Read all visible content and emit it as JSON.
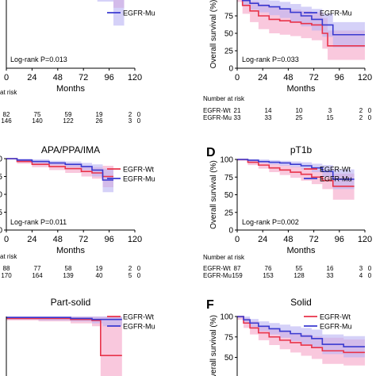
{
  "chart_data": [
    {
      "type": "line",
      "subtype": "kaplan-meier",
      "panel": "",
      "title": "",
      "ylabel": "",
      "xlabel": "Months",
      "xlim": [
        0,
        120
      ],
      "ylim": [
        0,
        100
      ],
      "xticks": [
        0,
        24,
        48,
        72,
        96,
        120
      ],
      "yticks": [],
      "legend": [
        "EGFR-Mu"
      ],
      "legend_placement": "top-right",
      "pvalue": "Log-rank P=0.013",
      "series": [
        {
          "name": "EGFR-Wt",
          "color": "#e8334a",
          "band": "#f5a3c7",
          "x": [
            0,
            15,
            25,
            40,
            55,
            70,
            85,
            100,
            110
          ],
          "y": [
            96,
            95,
            94,
            93,
            92,
            90,
            88,
            82,
            82
          ],
          "lower": [
            94,
            92,
            90,
            88,
            87,
            84,
            80,
            68,
            68
          ],
          "upper": [
            98,
            97,
            96,
            96,
            96,
            94,
            92,
            94,
            94
          ]
        },
        {
          "name": "EGFR-Mu",
          "color": "#3a3ad0",
          "band": "#b9b3f3",
          "x": [
            0,
            15,
            25,
            40,
            55,
            70,
            85,
            100,
            110
          ],
          "y": [
            97,
            97,
            96,
            96,
            95,
            92,
            88,
            88,
            88
          ],
          "lower": [
            95,
            94,
            93,
            92,
            90,
            85,
            75,
            48,
            48
          ],
          "upper": [
            99,
            99,
            99,
            98,
            98,
            96,
            95,
            96,
            96
          ]
        }
      ],
      "risk_table": {
        "label": "at risk",
        "rows": [
          {
            "group": "",
            "values": [
              "82",
              "75",
              "59",
              "19",
              "2",
              "0"
            ]
          },
          {
            "group": "",
            "values": [
              "146",
              "140",
              "122",
              "26",
              "3",
              "0"
            ]
          }
        ]
      }
    },
    {
      "type": "line",
      "subtype": "kaplan-meier",
      "panel": "",
      "title": "",
      "ylabel": "Overall survival (%)",
      "xlabel": "Months",
      "xlim": [
        0,
        120
      ],
      "ylim": [
        0,
        100
      ],
      "xticks": [
        0,
        24,
        48,
        72,
        96,
        120
      ],
      "yticks": [
        0,
        25,
        50,
        75,
        100
      ],
      "legend": [
        "EGFR-Mu"
      ],
      "legend_placement": "top-right",
      "pvalue": "Log-rank P=0.033",
      "series": [
        {
          "name": "EGFR-Wt",
          "color": "#e8334a",
          "band": "#f5a3c7",
          "x": [
            0,
            5,
            12,
            20,
            30,
            40,
            50,
            60,
            70,
            80,
            85,
            100,
            120
          ],
          "y": [
            100,
            90,
            82,
            75,
            70,
            68,
            66,
            64,
            62,
            50,
            32,
            32,
            32
          ],
          "lower": [
            95,
            78,
            66,
            56,
            50,
            48,
            46,
            43,
            40,
            28,
            12,
            12,
            12
          ],
          "upper": [
            100,
            100,
            96,
            92,
            88,
            86,
            84,
            82,
            80,
            72,
            54,
            54,
            54
          ]
        },
        {
          "name": "EGFR-Mu",
          "color": "#3a3ad0",
          "band": "#b9b3f3",
          "x": [
            0,
            5,
            12,
            20,
            30,
            40,
            50,
            60,
            70,
            80,
            90,
            100,
            120
          ],
          "y": [
            100,
            97,
            93,
            90,
            88,
            85,
            80,
            75,
            70,
            62,
            48,
            48,
            48
          ],
          "lower": [
            98,
            90,
            84,
            80,
            76,
            72,
            66,
            60,
            54,
            45,
            30,
            30,
            30
          ],
          "upper": [
            100,
            100,
            100,
            98,
            97,
            95,
            92,
            88,
            85,
            78,
            66,
            66,
            66
          ]
        }
      ],
      "risk_table": {
        "label": "Number at risk",
        "rows": [
          {
            "group": "EGFR-Wt",
            "values": [
              "21",
              "14",
              "10",
              "3",
              "2",
              "0"
            ]
          },
          {
            "group": "EGFR-Mu",
            "values": [
              "33",
              "33",
              "25",
              "15",
              "2",
              "0"
            ]
          }
        ]
      }
    },
    {
      "type": "line",
      "subtype": "kaplan-meier",
      "panel": "",
      "title": "APA/PPA/IMA",
      "ylabel": "",
      "xlabel": "Months",
      "xlim": [
        0,
        120
      ],
      "ylim": [
        0,
        100
      ],
      "xticks": [
        0,
        24,
        48,
        72,
        96,
        120
      ],
      "yticks": [
        0,
        25,
        50,
        75,
        100
      ],
      "legend": [
        "EGFR-Wt",
        "EGFR-Mu"
      ],
      "legend_placement": "top-right",
      "pvalue": "Log-rank P=0.011",
      "series": [
        {
          "name": "EGFR-Wt",
          "color": "#e8334a",
          "band": "#f5a3c7",
          "x": [
            0,
            10,
            24,
            40,
            55,
            70,
            80,
            90,
            100
          ],
          "y": [
            100,
            96,
            92,
            89,
            86,
            82,
            80,
            75,
            75
          ],
          "lower": [
            99,
            93,
            88,
            84,
            80,
            75,
            72,
            60,
            60
          ],
          "upper": [
            100,
            99,
            96,
            94,
            92,
            89,
            88,
            90,
            90
          ]
        },
        {
          "name": "EGFR-Mu",
          "color": "#3a3ad0",
          "band": "#b9b3f3",
          "x": [
            0,
            10,
            24,
            40,
            55,
            70,
            80,
            90,
            100
          ],
          "y": [
            100,
            98,
            96,
            94,
            92,
            89,
            84,
            70,
            70
          ],
          "lower": [
            99,
            96,
            93,
            91,
            88,
            84,
            75,
            53,
            53
          ],
          "upper": [
            100,
            100,
            99,
            97,
            96,
            94,
            92,
            86,
            86
          ]
        }
      ],
      "risk_table": {
        "label": "at risk",
        "rows": [
          {
            "group": "",
            "values": [
              "88",
              "77",
              "58",
              "19",
              "2",
              "0"
            ]
          },
          {
            "group": "",
            "values": [
              "170",
              "164",
              "139",
              "40",
              "5",
              "0"
            ]
          }
        ]
      }
    },
    {
      "type": "line",
      "subtype": "kaplan-meier",
      "panel": "D",
      "title": "pT1b",
      "ylabel": "Overall survival (%)",
      "xlabel": "Months",
      "xlim": [
        0,
        120
      ],
      "ylim": [
        0,
        100
      ],
      "xticks": [
        0,
        24,
        48,
        72,
        96,
        120
      ],
      "yticks": [
        0,
        25,
        50,
        75,
        100
      ],
      "legend": [
        "EGFR-Wt",
        "EGFR-Mu"
      ],
      "legend_placement": "top-right",
      "pvalue": "Log-rank P=0.002",
      "series": [
        {
          "name": "EGFR-Wt",
          "color": "#e8334a",
          "band": "#f5a3c7",
          "x": [
            0,
            10,
            20,
            30,
            40,
            50,
            60,
            70,
            80,
            90,
            110
          ],
          "y": [
            100,
            96,
            92,
            88,
            85,
            82,
            79,
            75,
            70,
            62,
            62
          ],
          "lower": [
            98,
            92,
            87,
            82,
            78,
            74,
            70,
            65,
            58,
            43,
            43
          ],
          "upper": [
            100,
            100,
            97,
            94,
            92,
            90,
            88,
            85,
            82,
            80,
            80
          ]
        },
        {
          "name": "EGFR-Mu",
          "color": "#3a3ad0",
          "band": "#b9b3f3",
          "x": [
            0,
            10,
            20,
            30,
            40,
            50,
            60,
            70,
            80,
            90,
            110
          ],
          "y": [
            100,
            99,
            97,
            96,
            95,
            93,
            91,
            88,
            83,
            72,
            72
          ],
          "lower": [
            99,
            97,
            95,
            93,
            91,
            89,
            86,
            82,
            75,
            58,
            58
          ],
          "upper": [
            100,
            100,
            100,
            99,
            98,
            97,
            96,
            94,
            92,
            86,
            86
          ]
        }
      ],
      "risk_table": {
        "label": "Number at risk",
        "rows": [
          {
            "group": "EGFR-Wt",
            "values": [
              "87",
              "76",
              "55",
              "16",
              "3",
              "0"
            ]
          },
          {
            "group": "EGFR-Mu",
            "values": [
              "159",
              "153",
              "128",
              "33",
              "4",
              "0"
            ]
          }
        ]
      }
    },
    {
      "type": "line",
      "subtype": "kaplan-meier",
      "panel": "",
      "title": "Part-solid",
      "ylabel": "",
      "xlabel": "",
      "xlim": [
        0,
        120
      ],
      "ylim": [
        0,
        100
      ],
      "xticks": [],
      "yticks": [],
      "legend": [
        "EGFR-Wt",
        "EGFR-Mu"
      ],
      "legend_placement": "top-right",
      "pvalue": "",
      "series": [
        {
          "name": "EGFR-Wt",
          "color": "#e8334a",
          "band": "#f5a3c7",
          "x": [
            0,
            30,
            60,
            80,
            88,
            108
          ],
          "y": [
            98,
            98,
            97,
            96,
            60,
            60
          ],
          "lower": [
            96,
            95,
            93,
            90,
            30,
            30
          ],
          "upper": [
            100,
            100,
            100,
            100,
            100,
            100
          ]
        },
        {
          "name": "EGFR-Mu",
          "color": "#3a3ad0",
          "band": "#b9b3f3",
          "x": [
            0,
            30,
            60,
            80,
            90,
            108
          ],
          "y": [
            99,
            99,
            98,
            97,
            97,
            97
          ],
          "lower": [
            97,
            96,
            95,
            93,
            90,
            90
          ],
          "upper": [
            100,
            100,
            100,
            100,
            100,
            100
          ]
        }
      ]
    },
    {
      "type": "line",
      "subtype": "kaplan-meier",
      "panel": "F",
      "title": "Solid",
      "ylabel": "verall survival (%)",
      "xlabel": "",
      "xlim": [
        0,
        120
      ],
      "ylim": [
        0,
        100
      ],
      "xticks": [],
      "yticks": [
        50,
        75,
        100
      ],
      "legend": [
        "EGFR-Wt",
        "EGFR-Mu"
      ],
      "legend_placement": "top-right",
      "pvalue": "",
      "series": [
        {
          "name": "EGFR-Wt",
          "color": "#e8334a",
          "band": "#f5a3c7",
          "x": [
            0,
            6,
            12,
            20,
            30,
            40,
            50,
            60,
            70,
            80,
            100,
            120
          ],
          "y": [
            100,
            92,
            86,
            80,
            75,
            71,
            68,
            65,
            62,
            58,
            56,
            56
          ],
          "lower": [
            96,
            86,
            78,
            71,
            65,
            60,
            56,
            52,
            48,
            42,
            40,
            40
          ],
          "upper": [
            100,
            98,
            94,
            89,
            85,
            82,
            80,
            78,
            76,
            74,
            72,
            72
          ]
        },
        {
          "name": "EGFR-Mu",
          "color": "#3a3ad0",
          "band": "#b9b3f3",
          "x": [
            0,
            6,
            12,
            20,
            30,
            40,
            50,
            60,
            70,
            80,
            100,
            120
          ],
          "y": [
            100,
            96,
            92,
            88,
            85,
            82,
            79,
            76,
            73,
            66,
            63,
            63
          ],
          "lower": [
            98,
            92,
            87,
            82,
            78,
            74,
            70,
            66,
            62,
            54,
            50,
            50
          ],
          "upper": [
            100,
            100,
            97,
            94,
            92,
            90,
            88,
            86,
            84,
            78,
            76,
            76
          ]
        }
      ]
    }
  ]
}
